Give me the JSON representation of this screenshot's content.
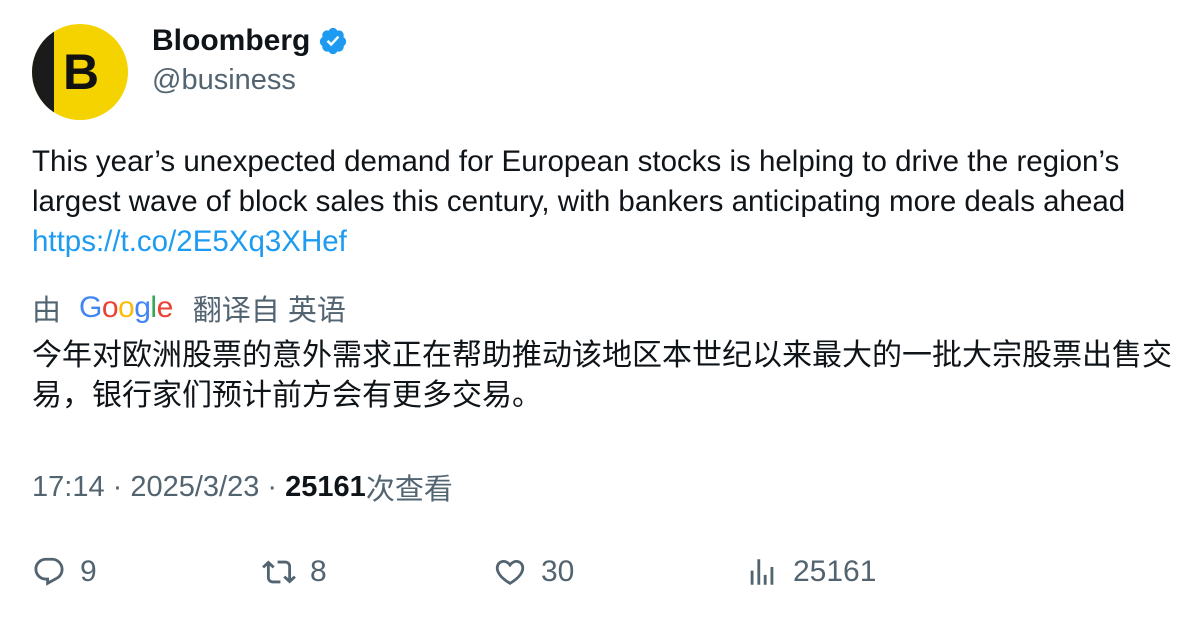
{
  "author": {
    "avatar_letter": "B",
    "name": "Bloomberg",
    "handle": "@business",
    "verified": true
  },
  "tweet": {
    "text": "This year’s unexpected demand for European stocks is helping to drive the region’s largest wave of block sales this century, with bankers anticipating more deals ahead ",
    "link": "https://t.co/2E5Xq3XHef"
  },
  "translation": {
    "by_label": "由",
    "provider": "Google",
    "from_label": "翻译自 英语",
    "text": "今年对欧洲股票的意外需求正在帮助推动该地区本世纪以来最大的一批大宗股票出售交易，银行家们预计前方会有更多交易。"
  },
  "meta": {
    "time": "17:14",
    "separator": " · ",
    "date": "2025/3/23",
    "views_count": "25161",
    "views_label": "次查看"
  },
  "actions": {
    "replies": "9",
    "retweets": "8",
    "likes": "30",
    "views": "25161"
  },
  "colors": {
    "accent": "#1d9bf0",
    "secondary_text": "#536471",
    "avatar_yellow": "#f5d300"
  }
}
